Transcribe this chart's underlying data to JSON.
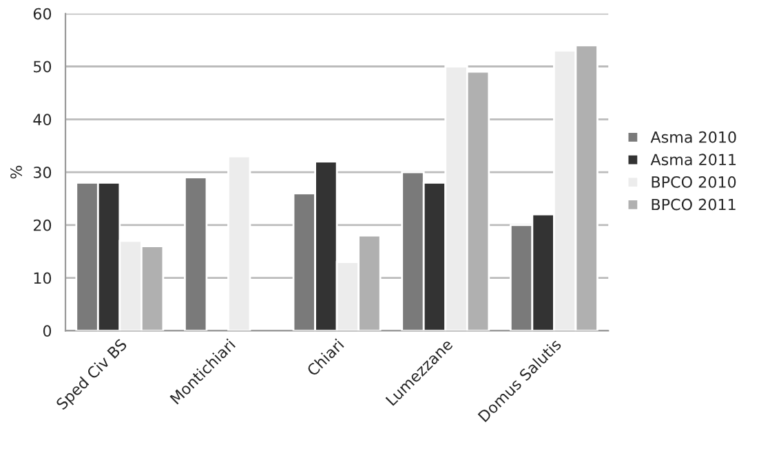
{
  "chart_data": {
    "type": "bar",
    "ylabel": "%",
    "categories": [
      "Sped Civ BS",
      "Montichiari",
      "Chiari",
      "Lumezzane",
      "Domus Salutis"
    ],
    "series": [
      {
        "name": "Asma 2010",
        "color": "#7a7a7a",
        "values": [
          28,
          29,
          26,
          30,
          20
        ]
      },
      {
        "name": "Asma 2011",
        "color": "#333333",
        "values": [
          28,
          null,
          32,
          28,
          22
        ]
      },
      {
        "name": "BPCO 2010",
        "color": "#ececec",
        "values": [
          17,
          33,
          13,
          50,
          53
        ]
      },
      {
        "name": "BPCO 2011",
        "color": "#b0b0b0",
        "values": [
          16,
          null,
          18,
          49,
          54
        ]
      }
    ],
    "ylim": [
      0,
      60
    ],
    "yticks": [
      0,
      10,
      20,
      30,
      40,
      50,
      60
    ],
    "grid": "y",
    "legend": "right"
  }
}
